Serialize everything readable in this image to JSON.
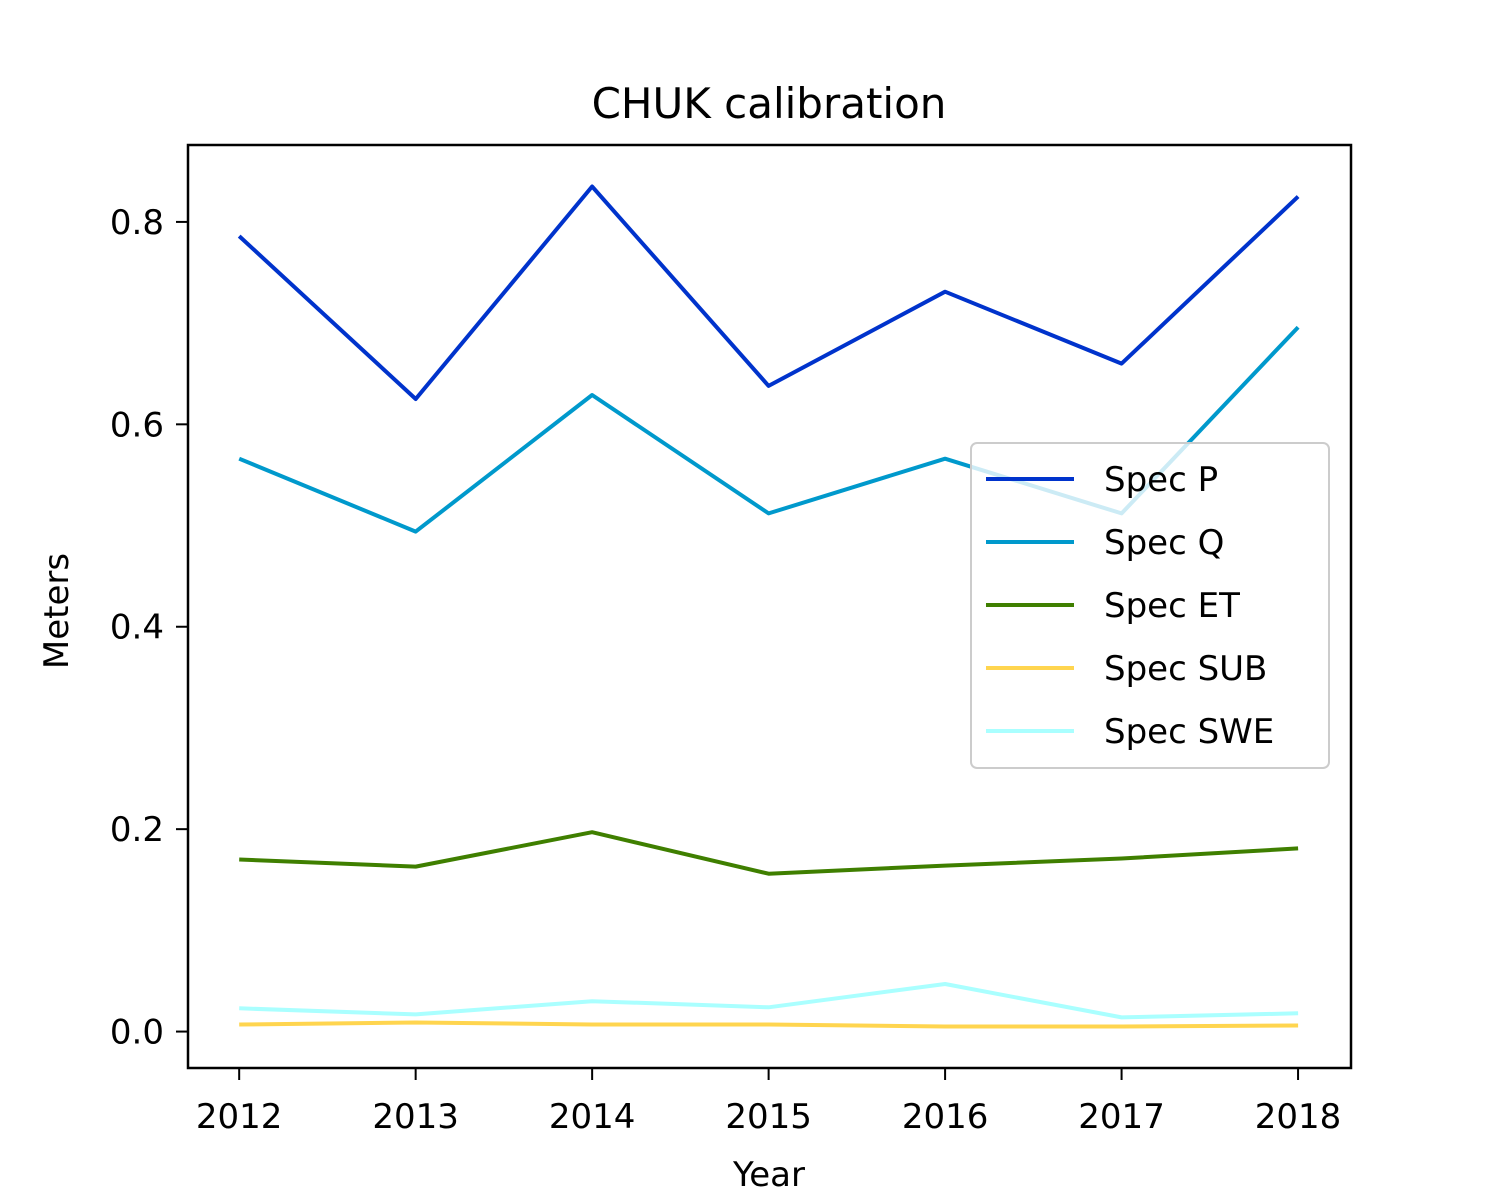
{
  "chart_data": {
    "type": "line",
    "title": "CHUK calibration",
    "xlabel": "Year",
    "ylabel": "Meters",
    "x": [
      2012,
      2013,
      2014,
      2015,
      2016,
      2017,
      2018
    ],
    "x_ticks": [
      "2012",
      "2013",
      "2014",
      "2015",
      "2016",
      "2017",
      "2018"
    ],
    "y_ticks": [
      "0.0",
      "0.2",
      "0.4",
      "0.6",
      "0.8"
    ],
    "xlim": [
      2011.71,
      2018.3
    ],
    "ylim": [
      -0.036,
      0.876
    ],
    "grid": false,
    "legend_position": "center-right",
    "series": [
      {
        "name": "Spec P",
        "color": "#0033cc",
        "values": [
          0.786,
          0.625,
          0.835,
          0.638,
          0.731,
          0.66,
          0.825
        ]
      },
      {
        "name": "Spec Q",
        "color": "#0099cc",
        "values": [
          0.566,
          0.494,
          0.629,
          0.512,
          0.566,
          0.512,
          0.696
        ]
      },
      {
        "name": "Spec ET",
        "color": "#3f7f00",
        "values": [
          0.17,
          0.163,
          0.197,
          0.156,
          0.164,
          0.171,
          0.181
        ]
      },
      {
        "name": "Spec SUB",
        "color": "#ffd54f",
        "values": [
          0.007,
          0.009,
          0.007,
          0.007,
          0.005,
          0.005,
          0.006
        ]
      },
      {
        "name": "Spec SWE",
        "color": "#aaffff",
        "values": [
          0.023,
          0.017,
          0.03,
          0.024,
          0.047,
          0.014,
          0.018
        ]
      }
    ]
  }
}
